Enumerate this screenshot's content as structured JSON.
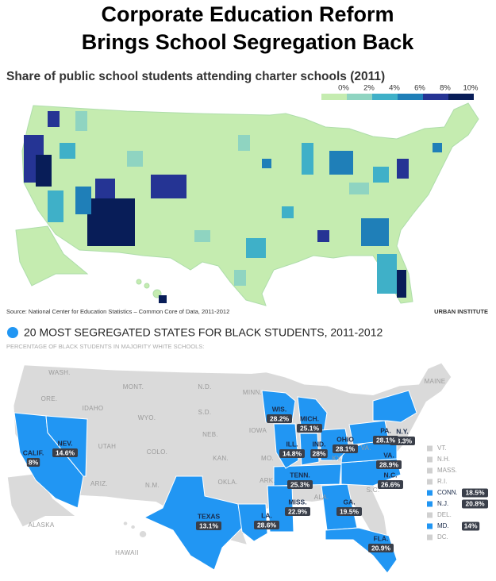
{
  "title_lines": [
    "Corporate Education Reform",
    "Brings School Segregation Back"
  ],
  "charter_map": {
    "title": "Share of public school students attending charter schools (2011)",
    "legend": [
      "0%",
      "2%",
      "4%",
      "6%",
      "8%",
      "10%"
    ],
    "source": "Source: National Center for Education Statistics – Common Core of Data, 2011-2012",
    "credit": "URBAN INSTITUTE"
  },
  "segregation_map": {
    "title": "20 MOST SEGREGATED STATES FOR BLACK STUDENTS, 2011-2012",
    "subtitle": "PERCENTAGE OF BLACK STUDENTS IN MAJORITY WHITE SCHOOLS:",
    "states": [
      {
        "name": "WASH."
      },
      {
        "name": "ORE."
      },
      {
        "name": "IDAHO"
      },
      {
        "name": "MONT."
      },
      {
        "name": "N.D."
      },
      {
        "name": "MINN."
      },
      {
        "name": "S.D."
      },
      {
        "name": "WYO."
      },
      {
        "name": "NEB."
      },
      {
        "name": "IOWA"
      },
      {
        "name": "UTAH"
      },
      {
        "name": "COLO."
      },
      {
        "name": "KAN."
      },
      {
        "name": "MO."
      },
      {
        "name": "KY."
      },
      {
        "name": "W. VA."
      },
      {
        "name": "ARIZ."
      },
      {
        "name": "N.M."
      },
      {
        "name": "OKLA."
      },
      {
        "name": "ARK."
      },
      {
        "name": "ALA."
      },
      {
        "name": "S.C."
      },
      {
        "name": "ALASKA"
      },
      {
        "name": "HAWAII"
      },
      {
        "name": "MAINE"
      }
    ],
    "highlighted": [
      {
        "name": "WIS.",
        "value": "28.2%"
      },
      {
        "name": "MICH.",
        "value": "25.1%"
      },
      {
        "name": "N.Y.",
        "value": "13.3%"
      },
      {
        "name": "NEV.",
        "value": "14.6%"
      },
      {
        "name": "CALIF.",
        "value": "8%"
      },
      {
        "name": "ILL.",
        "value": "14.8%"
      },
      {
        "name": "IND.",
        "value": "28%"
      },
      {
        "name": "OHIO",
        "value": "28.1%"
      },
      {
        "name": "PA.",
        "value": "28.1%"
      },
      {
        "name": "VA.",
        "value": "28.9%"
      },
      {
        "name": "N.C.",
        "value": "26.6%"
      },
      {
        "name": "TENN.",
        "value": "25.3%"
      },
      {
        "name": "MISS.",
        "value": "22.9%"
      },
      {
        "name": "GA.",
        "value": "19.5%"
      },
      {
        "name": "LA.",
        "value": "28.6%"
      },
      {
        "name": "TEXAS",
        "value": "13.1%"
      },
      {
        "name": "FLA.",
        "value": "20.9%"
      }
    ],
    "sidebar": [
      {
        "name": "VT."
      },
      {
        "name": "N.H."
      },
      {
        "name": "MASS."
      },
      {
        "name": "R.I."
      },
      {
        "name": "CONN.",
        "value": "18.5%"
      },
      {
        "name": "N.J.",
        "value": "20.8%"
      },
      {
        "name": "DEL."
      },
      {
        "name": "MD.",
        "value": "14%"
      },
      {
        "name": "DC."
      }
    ]
  }
}
